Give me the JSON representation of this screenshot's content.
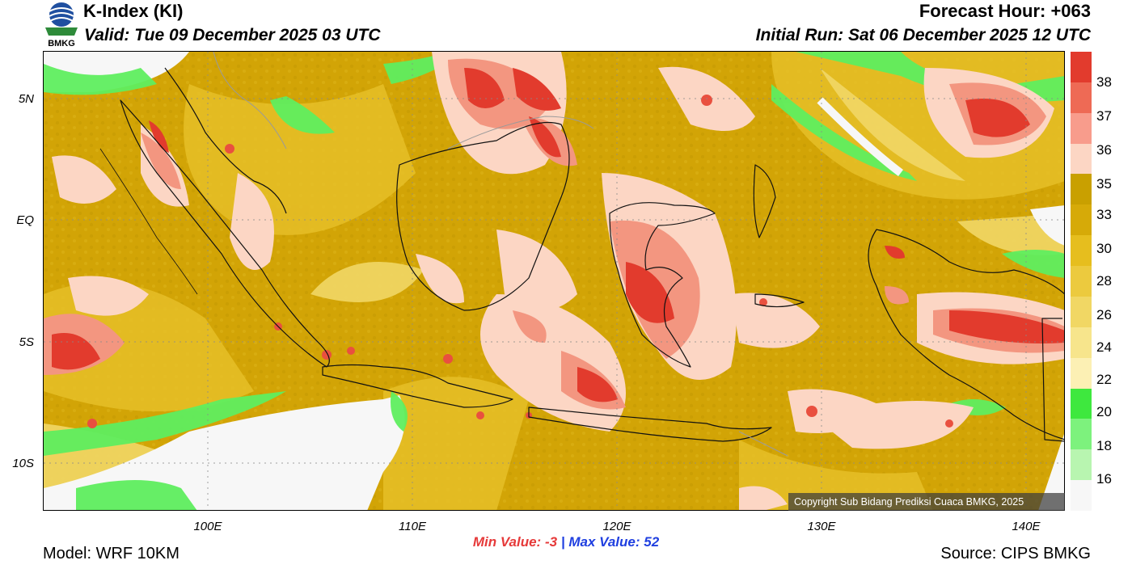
{
  "header": {
    "title": "K-Index (KI)",
    "valid": "Valid: Tue 09 December 2025 03 UTC",
    "forecast_hour": "Forecast Hour: +063",
    "initial_run": "Initial Run: Sat 06 December 2025 12 UTC"
  },
  "logo": {
    "label": "BMKG"
  },
  "map": {
    "lat_labels": [
      "5N",
      "EQ",
      "5S",
      "10S"
    ],
    "lon_labels": [
      "100E",
      "110E",
      "120E",
      "130E",
      "140E"
    ],
    "copyright": "Copyright Sub Bidang Prediksi Cuaca BMKG, 2025"
  },
  "colorbar": {
    "labels": [
      "38",
      "37",
      "36",
      "35",
      "33",
      "30",
      "28",
      "26",
      "24",
      "22",
      "20",
      "18",
      "16"
    ],
    "colors": [
      "#e23b2d",
      "#ee6a55",
      "#f89c8c",
      "#fcd6c4",
      "#c9a000",
      "#d6aa08",
      "#e6be1e",
      "#ecca3e",
      "#f1d764",
      "#f7e58c",
      "#fcf0b4",
      "#3ee83e",
      "#7df27d",
      "#b8f5b0",
      "#f7f7f7"
    ]
  },
  "stats": {
    "min_label": "Min Value:",
    "min_value": "-3",
    "separator": "|",
    "max_label": "Max Value:",
    "max_value": "52"
  },
  "footer": {
    "model": "Model: WRF 10KM",
    "source": "Source: CIPS BMKG"
  }
}
